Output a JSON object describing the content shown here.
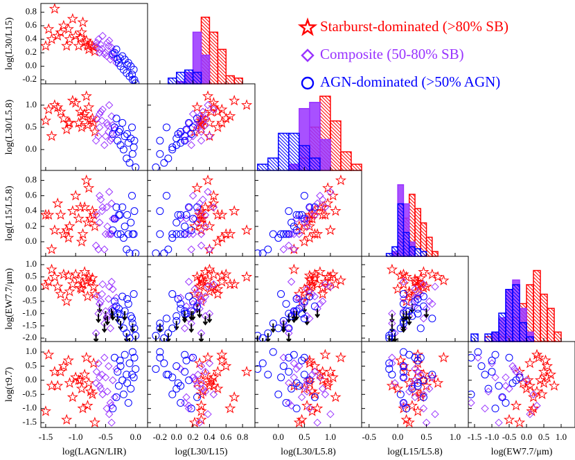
{
  "chart_data": {
    "type": "scatter-matrix",
    "variables": [
      {
        "label": "log(LAGN/LIR)",
        "xlim": [
          -1.58,
          0.2
        ],
        "xticks": [
          -1.5,
          {
            "value": -1,
            "label": "-1.0"
          },
          -0.5,
          {
            "value": 0,
            "label": "0.0"
          }
        ]
      },
      {
        "label": "log(L30/L15)",
        "xlim": [
          -0.35,
          0.95
        ],
        "xticks": [
          -0.2,
          {
            "value": 0,
            "label": "0.0"
          },
          0.2,
          0.4,
          0.6,
          0.8
        ],
        "ylim": [
          -0.26,
          0.93
        ],
        "yticks": [
          -0.2,
          {
            "value": 0,
            "label": "0.0"
          },
          0.2,
          0.4,
          0.6,
          0.8
        ]
      },
      {
        "label": "log(L30/L5.8)",
        "xlim": [
          -0.45,
          1.6
        ],
        "xticks": [
          {
            "value": 0,
            "label": "0.0"
          },
          0.5,
          {
            "value": 1,
            "label": "1.0"
          }
        ],
        "ylim": [
          -0.47,
          1.48
        ],
        "yticks": [
          {
            "value": 0,
            "label": "0.0"
          },
          0.5,
          {
            "value": 1,
            "label": "1.0"
          }
        ]
      },
      {
        "label": "log(L15/L5.8)",
        "xlim": [
          -0.63,
          1.23
        ],
        "xticks": [
          -0.5,
          {
            "value": 0,
            "label": "0.0"
          },
          0.5,
          {
            "value": 1,
            "label": "1.0"
          }
        ],
        "ylim": [
          -0.19,
          0.93
        ],
        "yticks": [
          {
            "value": 0,
            "label": "0.0"
          },
          0.2,
          0.4,
          0.6,
          0.8
        ]
      },
      {
        "label": "log(EW7.7/μm)",
        "xlim": [
          -1.68,
          1.4
        ],
        "xticks": [
          -1.5,
          {
            "value": -1,
            "label": "-1.0"
          },
          -0.5,
          {
            "value": 0,
            "label": "0.0"
          },
          0.5,
          {
            "value": 1,
            "label": "1.0"
          }
        ],
        "ylim": [
          -2.14,
          1.34
        ],
        "yticks": [
          {
            "value": 1,
            "label": "1.0"
          },
          0.5,
          {
            "value": 0,
            "label": "0.0"
          },
          -0.5,
          {
            "value": -1,
            "label": "-1.0"
          },
          -1.5,
          {
            "value": -2,
            "label": "-2.0"
          }
        ]
      },
      {
        "label": "log(τ9.7)",
        "ylim": [
          -1.67,
          1.37
        ],
        "yticks": [
          {
            "value": 1,
            "label": "1.0"
          },
          0.5,
          {
            "value": 0,
            "label": "0.0"
          },
          -0.5,
          {
            "value": -1,
            "label": "-1.0"
          },
          -1.5
        ]
      }
    ],
    "groups": [
      {
        "name": "Starburst-dominated (>80% SB)",
        "color": "#ff0000",
        "marker": "star",
        "hatch": true,
        "points": [
          [
            -1.45,
            0.55,
            0.9,
            0.35,
            0.3,
            0.9
          ],
          [
            -1.35,
            0.85,
            1.0,
            0.15,
            0.5,
            0.3
          ],
          [
            -1.3,
            0.45,
            0.95,
            0.5,
            0.1,
            -0.2
          ],
          [
            -1.2,
            0.6,
            0.7,
            0.1,
            0.6,
            0.5
          ],
          [
            -1.1,
            0.4,
            0.6,
            0.2,
            -0.1,
            -0.1
          ],
          [
            -1.05,
            0.7,
            1.1,
            0.4,
            0.2,
            -0.6
          ],
          [
            -0.95,
            0.3,
            0.6,
            0.3,
            0.4,
            0.0
          ],
          [
            -0.9,
            0.5,
            0.5,
            0.0,
            0.0,
            -0.3
          ],
          [
            -0.85,
            0.35,
            0.8,
            0.45,
            0.7,
            0.2
          ],
          [
            -0.8,
            0.3,
            0.55,
            0.25,
            -0.3,
            -0.9
          ],
          [
            -0.75,
            0.32,
            0.65,
            0.3,
            0.3,
            -0.4
          ],
          [
            -0.7,
            0.28,
            0.6,
            0.35,
            0.1,
            0.6
          ],
          [
            -1.4,
            0.4,
            0.3,
            -0.1,
            0.8,
            -0.2
          ],
          [
            -1.15,
            0.3,
            0.45,
            0.15,
            -0.5,
            -1.4
          ],
          [
            -0.78,
            0.25,
            0.95,
            0.7,
            0.5,
            -0.1
          ],
          [
            -1.0,
            0.45,
            1.05,
            0.6,
            0.6,
            0.1
          ],
          [
            -0.88,
            0.65,
            0.75,
            0.1,
            0.2,
            -1.0
          ],
          [
            -1.25,
            0.5,
            0.85,
            0.35,
            -0.2,
            0.3
          ],
          [
            -0.72,
            0.3,
            0.7,
            0.4,
            0.45,
            -0.5
          ],
          [
            -0.82,
            0.38,
            1.2,
            0.8,
            0.35,
            0.8
          ],
          [
            -1.5,
            0.3,
            0.65,
            0.35,
            0.15,
            -1.1
          ],
          [
            -0.68,
            0.22,
            0.4,
            0.2,
            -0.2,
            -1.5
          ],
          [
            -1.12,
            0.55,
            0.6,
            0.05,
            0.55,
            0.7
          ],
          [
            -0.92,
            0.42,
            0.85,
            0.45,
            0.05,
            0.0
          ]
        ]
      },
      {
        "name": "Composite (50-80% SB)",
        "color": "#9933ff",
        "marker": "diamond",
        "hatch": false,
        "points": [
          [
            -0.65,
            0.35,
            0.7,
            0.35,
            -0.3,
            0.3
          ],
          [
            -0.6,
            0.25,
            0.5,
            0.25,
            -0.6,
            -0.2
          ],
          [
            -0.55,
            0.45,
            0.9,
            0.45,
            0.2,
            -0.5
          ],
          [
            -0.5,
            0.2,
            0.3,
            0.1,
            -0.9,
            0.1
          ],
          [
            -0.48,
            0.15,
            0.6,
            0.45,
            -1.2,
            -1.0
          ],
          [
            -0.45,
            0.3,
            0.4,
            0.1,
            -0.4,
            0.5
          ],
          [
            -0.42,
            0.1,
            0.2,
            0.1,
            -1.6,
            -0.8
          ],
          [
            -0.4,
            0.28,
            0.75,
            0.5,
            -0.8,
            -1.5
          ],
          [
            -0.38,
            0.22,
            0.55,
            0.3,
            0.0,
            0.0
          ],
          [
            -0.62,
            0.4,
            0.3,
            -0.1,
            -1.0,
            0.6
          ],
          [
            -0.58,
            0.32,
            0.85,
            0.55,
            -0.5,
            -0.3
          ],
          [
            -0.52,
            0.18,
            0.1,
            -0.1,
            -1.4,
            0.8
          ],
          [
            -0.35,
            0.12,
            0.45,
            0.3,
            -0.7,
            -0.6
          ],
          [
            -0.44,
            0.38,
            1.0,
            0.65,
            0.1,
            -1.2
          ],
          [
            -0.56,
            0.26,
            0.65,
            0.4,
            -0.2,
            0.2
          ],
          [
            -0.66,
            0.3,
            0.2,
            -0.05,
            -1.8,
            -0.1
          ],
          [
            -0.32,
            0.05,
            0.35,
            0.3,
            -0.35,
            0.4
          ],
          [
            -0.47,
            0.35,
            0.55,
            0.2,
            -1.1,
            -0.4
          ],
          [
            -0.6,
            0.2,
            0.8,
            0.6,
            -0.6,
            0.1
          ],
          [
            -0.4,
            0.15,
            0.25,
            0.1,
            0.3,
            -0.9
          ]
        ],
        "ew_upper_limit": [
          false,
          true,
          false,
          true,
          false,
          false,
          false,
          true,
          false,
          true,
          false,
          true,
          false,
          false,
          false,
          true,
          false,
          true,
          false,
          false
        ]
      },
      {
        "name": "AGN-dominated (>50% AGN)",
        "color": "#0000ff",
        "marker": "circle",
        "hatch": true,
        "points": [
          [
            -0.35,
            0.2,
            0.5,
            0.3,
            -0.5,
            0.8
          ],
          [
            -0.3,
            0.1,
            0.2,
            0.1,
            -1.0,
            0.3
          ],
          [
            -0.28,
            0.05,
            0.4,
            0.35,
            -0.8,
            -0.2
          ],
          [
            -0.25,
            0.0,
            0.1,
            0.1,
            -1.3,
            0.5
          ],
          [
            -0.22,
            0.15,
            0.6,
            0.45,
            -0.3,
            0.0
          ],
          [
            -0.2,
            -0.05,
            0.0,
            0.05,
            -1.6,
            -0.5
          ],
          [
            -0.18,
            0.1,
            0.3,
            0.2,
            -0.9,
            0.9
          ],
          [
            -0.15,
            -0.1,
            -0.2,
            -0.1,
            -1.8,
            0.2
          ],
          [
            -0.12,
            0.05,
            0.15,
            0.1,
            -0.6,
            -0.8
          ],
          [
            -0.1,
            -0.15,
            -0.3,
            -0.15,
            -2.0,
            0.6
          ],
          [
            -0.08,
            0.0,
            0.25,
            0.25,
            -1.1,
            -0.3
          ],
          [
            -0.05,
            -0.2,
            -0.1,
            0.1,
            -1.4,
            1.0
          ],
          [
            -0.03,
            -0.05,
            0.05,
            0.1,
            -0.2,
            0.1
          ],
          [
            0.0,
            -0.25,
            -0.4,
            -0.15,
            -1.9,
            0.4
          ],
          [
            -0.32,
            0.25,
            0.7,
            0.45,
            -0.7,
            -0.6
          ],
          [
            -0.26,
            0.12,
            0.45,
            0.35,
            -1.0,
            0.7
          ],
          [
            -0.14,
            0.02,
            0.35,
            0.35,
            -0.4,
            -0.1
          ],
          [
            -0.06,
            -0.12,
            0.5,
            0.6,
            -1.2,
            0.2
          ],
          [
            -0.38,
            0.18,
            0.35,
            0.15,
            -0.9,
            -1.0
          ],
          [
            -0.02,
            -0.2,
            0.2,
            0.4,
            -1.6,
            0.8
          ]
        ],
        "ew_upper_limit": [
          false,
          true,
          false,
          true,
          false,
          false,
          true,
          true,
          false,
          true,
          false,
          true,
          false,
          true,
          false,
          false,
          false,
          false,
          true,
          false
        ]
      }
    ],
    "upper_limit_color": "#000000",
    "histograms": [
      {
        "bins": [
          -0.1,
          0,
          0.1,
          0.2,
          0.3,
          0.4,
          0.5,
          0.6,
          0.7,
          0.8
        ],
        "ylim": [
          0,
          70
        ],
        "counts": [
          [
            0,
            0,
            0,
            10,
            58,
            45,
            30,
            7,
            5
          ],
          [
            0,
            2,
            10,
            45,
            25,
            0,
            0,
            0,
            0
          ],
          [
            5,
            10,
            12,
            10,
            0,
            0,
            0,
            0,
            0
          ]
        ]
      },
      {
        "bins": [
          -0.4,
          -0.2,
          0,
          0.2,
          0.4,
          0.6,
          0.8,
          1.0,
          1.2,
          1.4,
          1.6
        ],
        "ylim": [
          0,
          70
        ],
        "counts": [
          [
            0,
            0,
            0,
            0,
            10,
            35,
            60,
            40,
            15,
            5
          ],
          [
            0,
            0,
            0,
            5,
            50,
            55,
            25,
            0,
            0,
            0
          ],
          [
            5,
            10,
            30,
            30,
            20,
            10,
            0,
            0,
            0,
            0
          ]
        ]
      },
      {
        "bins": [
          -0.3,
          -0.2,
          -0.1,
          0,
          0.1,
          0.2,
          0.3,
          0.4,
          0.5,
          0.6,
          0.7,
          0.8,
          0.9
        ],
        "ylim": [
          0,
          90
        ],
        "counts": [
          [
            0,
            0,
            3,
            15,
            40,
            65,
            50,
            35,
            20,
            5,
            0,
            0
          ],
          [
            0,
            0,
            5,
            75,
            55,
            15,
            0,
            0,
            0,
            0,
            0,
            0
          ],
          [
            0,
            3,
            10,
            55,
            25,
            10,
            8,
            5,
            0,
            0,
            0,
            0
          ]
        ]
      },
      {
        "bins": [
          -1.6,
          -1.4,
          -1.2,
          -1.0,
          -0.8,
          -0.6,
          -0.4,
          -0.2,
          0,
          0.2,
          0.4,
          0.6,
          0.8,
          1.0,
          1.2
        ],
        "ylim": [
          0,
          90
        ],
        "counts": [
          [
            0,
            0,
            5,
            0,
            5,
            5,
            25,
            40,
            60,
            75,
            50,
            35,
            10,
            0
          ],
          [
            0,
            0,
            0,
            10,
            25,
            55,
            65,
            35,
            10,
            0,
            0,
            0,
            0,
            0
          ],
          [
            8,
            0,
            8,
            10,
            30,
            55,
            60,
            20,
            5,
            0,
            0,
            0,
            0,
            0
          ]
        ]
      }
    ]
  }
}
